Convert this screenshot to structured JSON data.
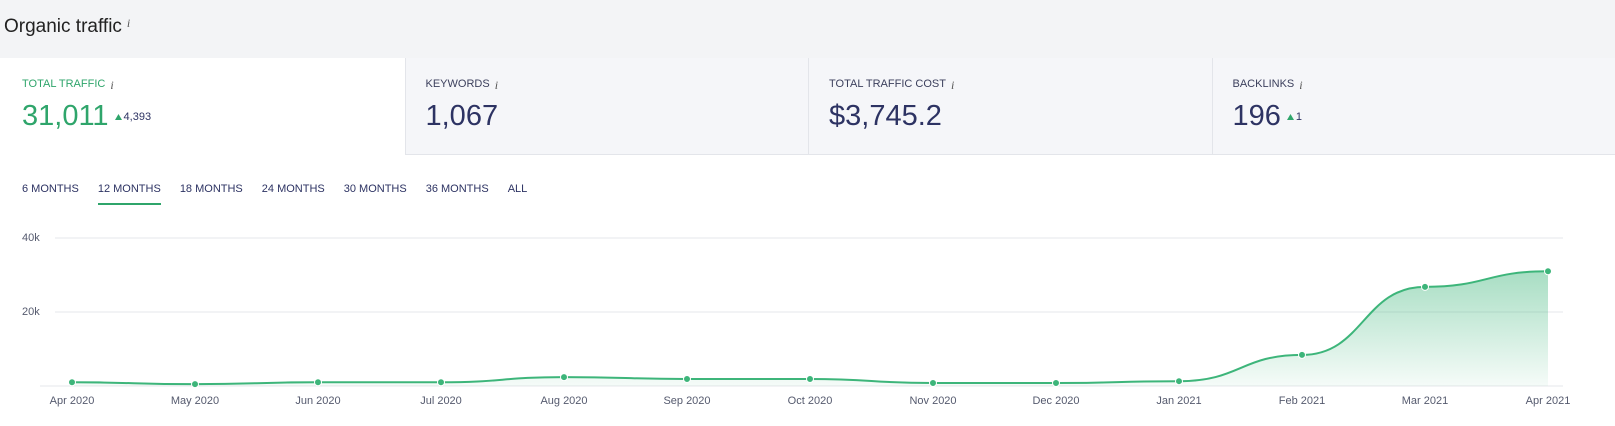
{
  "header": {
    "title": "Organic traffic",
    "info_icon": "i"
  },
  "metrics": [
    {
      "label": "TOTAL TRAFFIC",
      "value": "31,011",
      "change": "4,393"
    },
    {
      "label": "KEYWORDS",
      "value": "1,067"
    },
    {
      "label": "TOTAL TRAFFIC COST",
      "value": "$3,745.2"
    },
    {
      "label": "BACKLINKS",
      "value": "196",
      "change": "1"
    }
  ],
  "tabs": {
    "items": [
      "6 MONTHS",
      "12 MONTHS",
      "18 MONTHS",
      "24 MONTHS",
      "30 MONTHS",
      "36 MONTHS",
      "ALL"
    ],
    "active": 1
  },
  "chart_data": {
    "type": "area",
    "categories": [
      "Apr 2020",
      "May 2020",
      "Jun 2020",
      "Jul 2020",
      "Aug 2020",
      "Sep 2020",
      "Oct 2020",
      "Nov 2020",
      "Dec 2020",
      "Jan 2021",
      "Feb 2021",
      "Mar 2021",
      "Apr 2021"
    ],
    "values": [
      1000,
      500,
      1000,
      1000,
      2400,
      1900,
      1900,
      800,
      800,
      1300,
      8400,
      26800,
      31011
    ],
    "color": "#3db57a",
    "ylim": [
      0,
      40000
    ],
    "yticks": [
      {
        "value": 20000,
        "label": "20k"
      },
      {
        "value": 40000,
        "label": "40k"
      }
    ],
    "grid": true
  }
}
